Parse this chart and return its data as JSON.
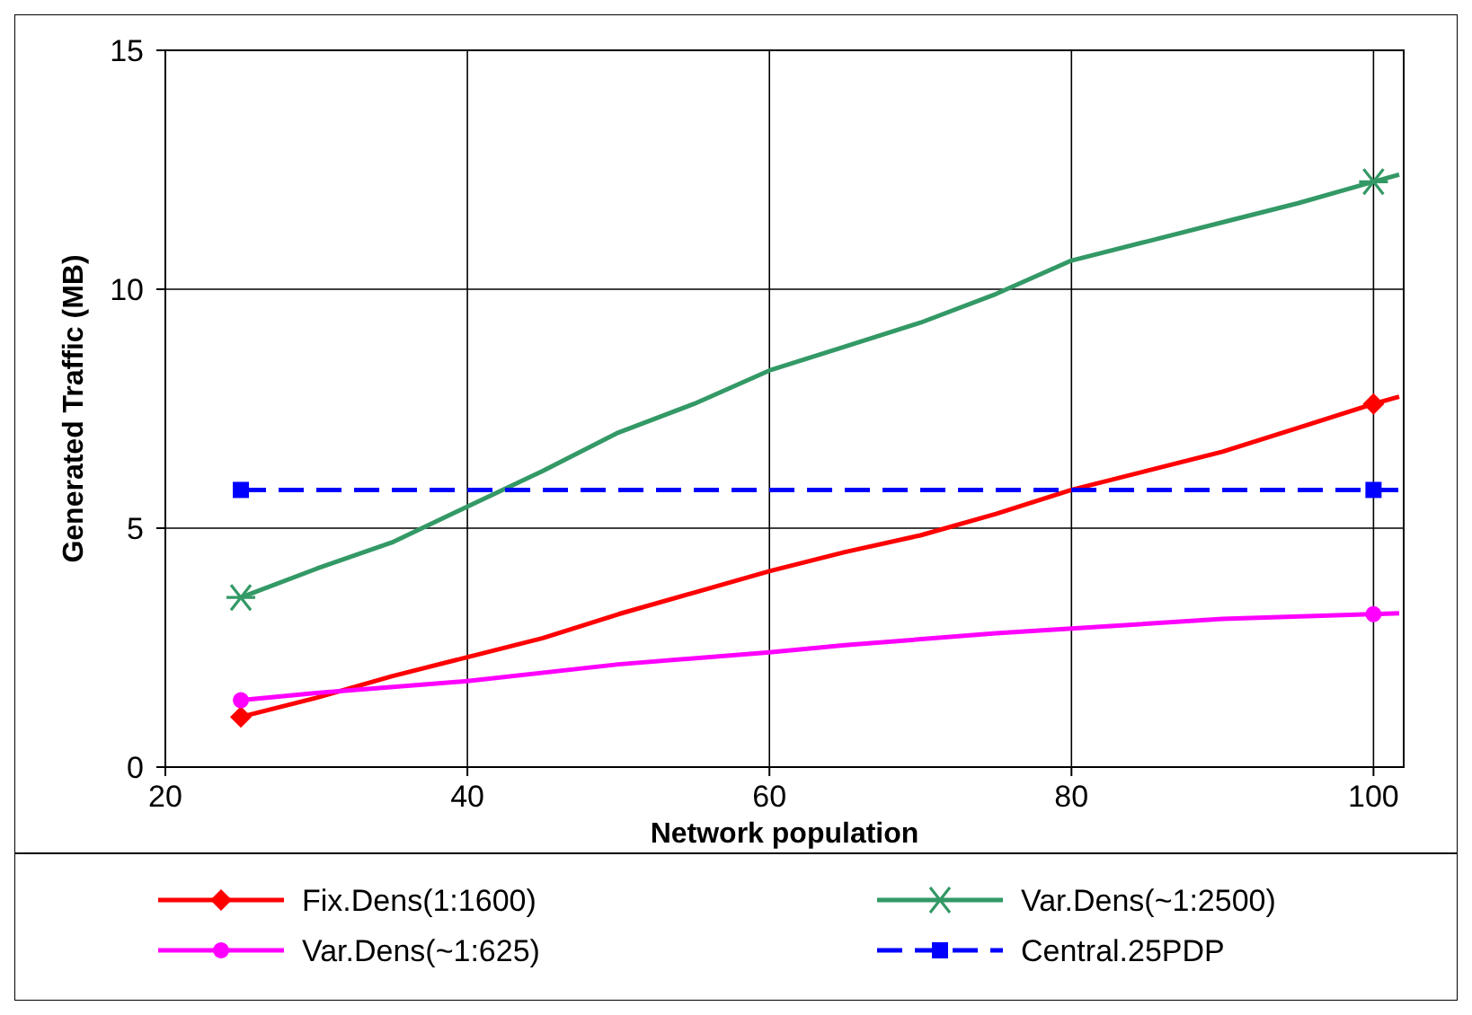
{
  "chart_data": {
    "type": "line",
    "xlabel": "Network population",
    "ylabel": "Generated Traffic (MB)",
    "xlim": [
      20,
      102
    ],
    "xticks": [
      20,
      40,
      60,
      80,
      100
    ],
    "ylim": [
      0,
      15
    ],
    "yticks": [
      0,
      5,
      10,
      15
    ],
    "grid": true,
    "legend": "bottom",
    "series": [
      {
        "name": "Fix.Dens(1:1600)",
        "color": "#ff0000",
        "line_style": "solid",
        "x": [
          25,
          30,
          35,
          40,
          45,
          50,
          55,
          60,
          65,
          70,
          75,
          80,
          85,
          90,
          95,
          100,
          101.7
        ],
        "values": [
          1.05,
          1.45,
          1.9,
          2.3,
          2.7,
          3.2,
          3.65,
          4.1,
          4.5,
          4.85,
          5.3,
          5.8,
          6.2,
          6.6,
          7.1,
          7.6,
          7.75
        ]
      },
      {
        "name": "Var.Dens(~1:2500)",
        "color": "#339966",
        "line_style": "solid",
        "x": [
          25,
          30,
          35,
          40,
          45,
          50,
          55,
          60,
          65,
          70,
          75,
          80,
          85,
          90,
          95,
          100,
          101.7
        ],
        "values": [
          3.55,
          4.15,
          4.7,
          5.45,
          6.2,
          7.0,
          7.6,
          8.3,
          8.8,
          9.3,
          9.9,
          10.6,
          11.0,
          11.4,
          11.8,
          12.25,
          12.4
        ]
      },
      {
        "name": "Var.Dens(~1:625)",
        "color": "#ff00ff",
        "line_style": "solid",
        "x": [
          25,
          30,
          40,
          50,
          60,
          65,
          75,
          80,
          90,
          100,
          101.7
        ],
        "values": [
          1.4,
          1.55,
          1.8,
          2.15,
          2.4,
          2.55,
          2.8,
          2.9,
          3.1,
          3.2,
          3.22
        ]
      },
      {
        "name": "Central.25PDP",
        "color": "#0000ff",
        "line_style": "dashed",
        "x": [
          25,
          100,
          101.7
        ],
        "values": [
          5.8,
          5.8,
          5.8
        ]
      },
      {
        "type": "scatter",
        "color": "#ff0000",
        "marker": "diamond",
        "x": [
          25,
          100
        ],
        "values": [
          1.05,
          7.6
        ]
      },
      {
        "type": "scatter",
        "color": "#339966",
        "marker": "cross",
        "x": [
          25,
          100
        ],
        "values": [
          3.55,
          12.25
        ]
      },
      {
        "type": "scatter",
        "color": "#ff00ff",
        "marker": "circle",
        "x": [
          25,
          100
        ],
        "values": [
          1.4,
          3.2
        ]
      },
      {
        "type": "scatter",
        "color": "#0000ff",
        "marker": "square",
        "x": [
          25,
          100
        ],
        "values": [
          5.8,
          5.8
        ]
      }
    ]
  }
}
